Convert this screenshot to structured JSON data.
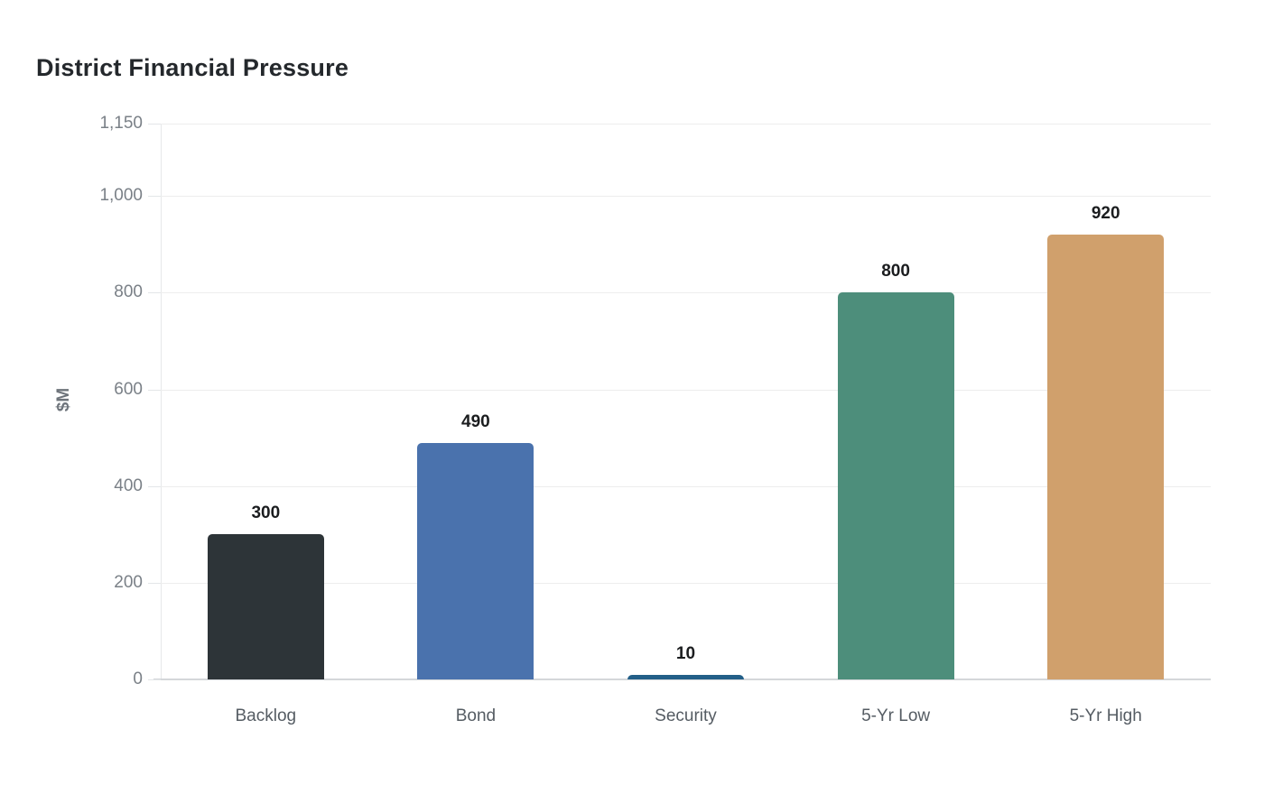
{
  "chart_data": {
    "type": "bar",
    "title": "District Financial Pressure",
    "xlabel": "",
    "ylabel": "$M",
    "categories": [
      "Backlog",
      "Bond",
      "Security",
      "5-Yr Low",
      "5-Yr High"
    ],
    "values": [
      300,
      490,
      10,
      800,
      920
    ],
    "value_labels": [
      "300",
      "490",
      "10",
      "800",
      "920"
    ],
    "bar_colors": [
      "#2d3438",
      "#4a72ad",
      "#235f88",
      "#4d8e7b",
      "#d0a06c"
    ],
    "ylim": [
      0,
      1150
    ],
    "yticks": [
      0,
      200,
      400,
      600,
      800,
      1000,
      1150
    ],
    "ytick_labels": [
      "0",
      "200",
      "400",
      "600",
      "800",
      "1,000",
      "1,150"
    ],
    "grid": "horizontal",
    "legend": "none",
    "colors": {
      "background": "#ffffff",
      "gridline": "#ededed",
      "y_axis_line": "#e6e8ea",
      "x_axis_line": "#d4d7da",
      "tick_mark": "#e3e6e8",
      "tick_label": "#7a8087",
      "category_label": "#555c63",
      "value_label": "#1b1d1f",
      "title": "#24282c",
      "y_axis_title": "#6e747b"
    }
  }
}
